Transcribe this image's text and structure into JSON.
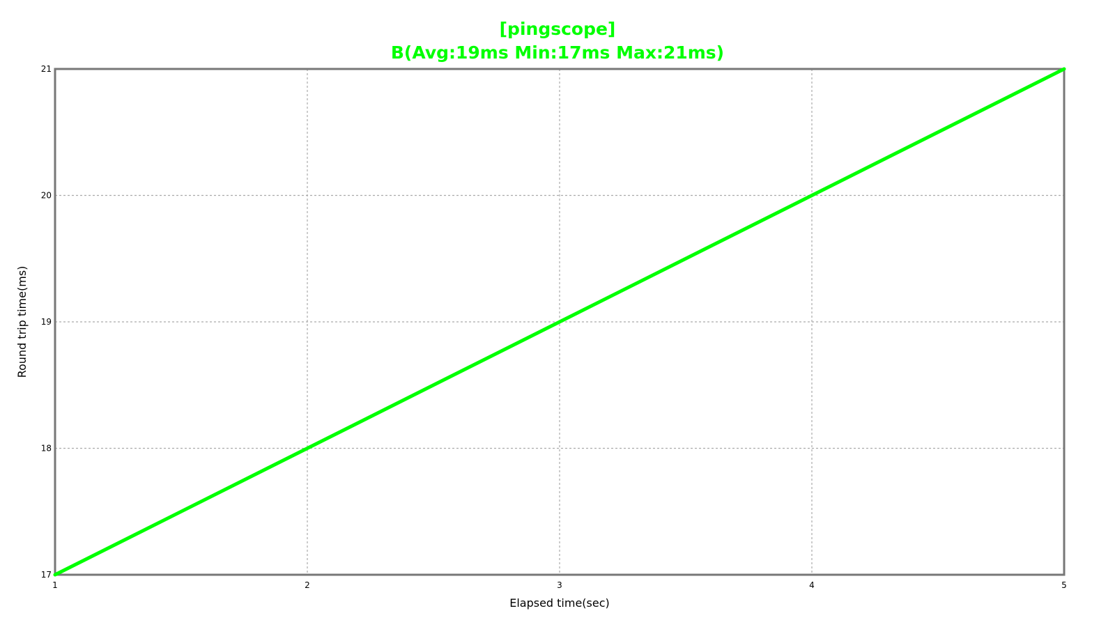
{
  "chart_data": {
    "type": "line",
    "title": "[pingscope]",
    "subtitle": "B(Avg:19ms Min:17ms Max:21ms)",
    "title_color": "#00ff00",
    "xlabel": "Elapsed time(sec)",
    "ylabel": "Round trip time(ms)",
    "xlim": [
      1,
      5
    ],
    "ylim": [
      17,
      21
    ],
    "x_ticks": [
      "1",
      "2",
      "3",
      "4",
      "5"
    ],
    "y_ticks": [
      "17",
      "18",
      "19",
      "20",
      "21"
    ],
    "grid": true,
    "grid_style": "dotted",
    "series": [
      {
        "x": [
          1,
          2,
          3,
          4,
          5
        ],
        "y": [
          17,
          18,
          19,
          20,
          21
        ],
        "color": "#00ff00"
      }
    ]
  }
}
